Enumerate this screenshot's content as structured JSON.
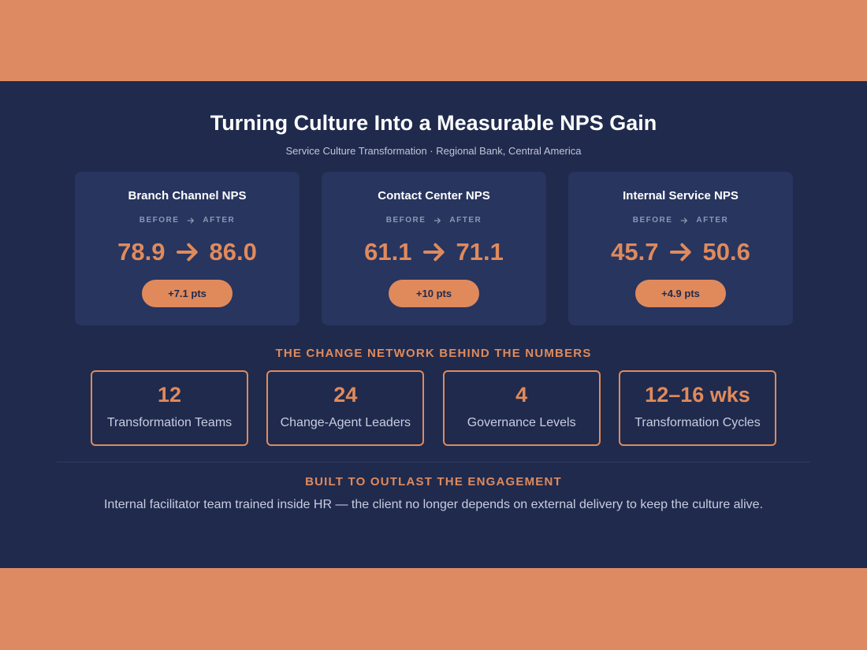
{
  "header": {
    "title": "Turning Culture Into a Measurable NPS Gain",
    "subtitle": "Service Culture Transformation · Regional Bank, Central America"
  },
  "cards": [
    {
      "title": "Branch Channel NPS",
      "before_label": "BEFORE",
      "after_label": "AFTER",
      "before": "78.9",
      "after": "86.0",
      "change": "+7.1 pts"
    },
    {
      "title": "Contact Center NPS",
      "before_label": "BEFORE",
      "after_label": "AFTER",
      "before": "61.1",
      "after": "71.1",
      "change": "+10 pts"
    },
    {
      "title": "Internal Service NPS",
      "before_label": "BEFORE",
      "after_label": "AFTER",
      "before": "45.7",
      "after": "50.6",
      "change": "+4.9 pts"
    }
  ],
  "network": {
    "heading": "THE CHANGE NETWORK BEHIND THE NUMBERS",
    "items": [
      {
        "value": "12",
        "label": "Transformation Teams"
      },
      {
        "value": "24",
        "label": "Change-Agent Leaders"
      },
      {
        "value": "4",
        "label": "Governance Levels"
      },
      {
        "value": "12–16 wks",
        "label": "Transformation Cycles"
      }
    ]
  },
  "legacy": {
    "heading": "BUILT TO OUTLAST THE ENGAGEMENT",
    "text": "Internal facilitator team trained inside HR — the client no longer depends on external delivery to keep the culture alive."
  }
}
